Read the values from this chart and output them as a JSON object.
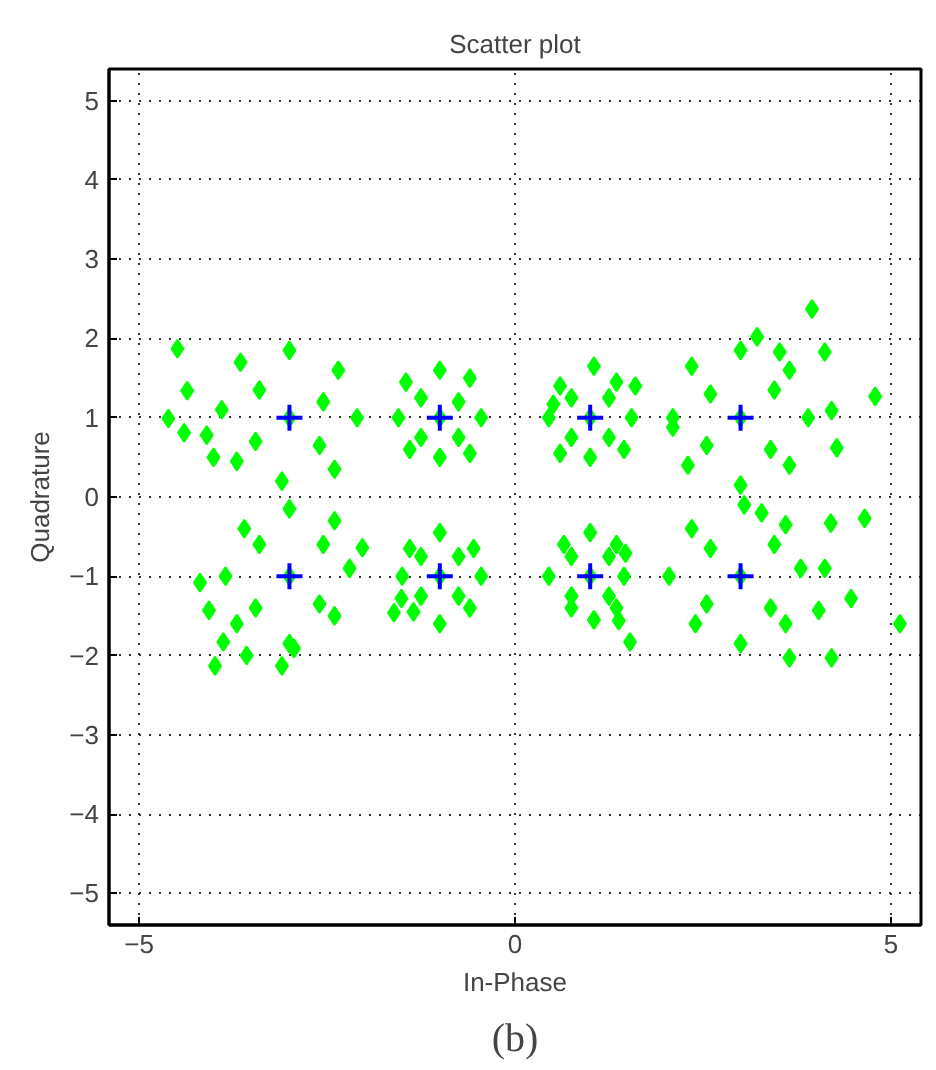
{
  "chart_data": {
    "type": "scatter",
    "title": "Scatter plot",
    "xlabel": "In-Phase",
    "ylabel": "Quadrature",
    "annotations": [
      "(b)"
    ],
    "xlim": [
      -5.4,
      5.4
    ],
    "ylim": [
      -5.4,
      5.4
    ],
    "xticks": [
      -5,
      0,
      5
    ],
    "yticks": [
      -5,
      -4,
      -3,
      -2,
      -1,
      0,
      1,
      2,
      3,
      4,
      5
    ],
    "grid": true,
    "line_style": "dotted",
    "series": [
      {
        "color": "#00ff00",
        "marker": "diamond",
        "x": [
          -3,
          -2.1,
          -2.35,
          -3.0,
          -3.65,
          -3.9,
          -3.7,
          -3.1,
          -2.4,
          -2.55,
          -3.4,
          -3.45,
          -2.6,
          -4.49,
          -4.61,
          -4.36,
          -4.4,
          -4.01,
          -4.1,
          3,
          3.9,
          3.65,
          3.0,
          2.35,
          2.1,
          2.3,
          3.0,
          3.65,
          3.45,
          2.6,
          2.55,
          3.4,
          3.95,
          3.22,
          4.79,
          4.21,
          4.28,
          2.1,
          4.12,
          3.52,
          -1,
          -0.45,
          -0.6,
          -1.0,
          -1.45,
          -1.55,
          -1.4,
          -1.0,
          -0.6,
          -0.75,
          -1.25,
          -1.25,
          -0.75,
          1,
          1.55,
          1.35,
          1.05,
          0.6,
          0.45,
          0.6,
          1.0,
          1.45,
          1.25,
          0.75,
          0.75,
          1.25,
          1.6,
          0.51,
          -3,
          -2.2,
          -2.4,
          -3.0,
          -3.6,
          -3.85,
          -3.7,
          -3.0,
          -2.4,
          -2.55,
          -3.4,
          -3.45,
          -2.6,
          -4.19,
          -4.07,
          -3.88,
          -3.99,
          -3.57,
          -3.1,
          -2.94,
          -2.03,
          3,
          3.8,
          3.6,
          3.05,
          2.35,
          2.05,
          2.4,
          3.0,
          3.6,
          3.45,
          2.6,
          2.55,
          3.4,
          4.65,
          4.2,
          4.47,
          5.12,
          3.65,
          4.21,
          4.12,
          4.04,
          3.28,
          -1,
          -0.45,
          -0.55,
          -1.0,
          -1.4,
          -1.5,
          -1.35,
          -1.0,
          -0.6,
          -0.75,
          -1.25,
          -1.25,
          -0.75,
          -1.61,
          -1.51,
          1,
          1.45,
          1.35,
          1.0,
          0.65,
          0.45,
          0.75,
          1.05,
          1.35,
          1.25,
          0.75,
          0.75,
          1.25,
          1.47,
          1.38,
          1.53
        ],
        "values": [
          1,
          1.0,
          1.6,
          1.85,
          1.7,
          1.1,
          0.45,
          0.2,
          0.35,
          1.2,
          1.35,
          0.7,
          0.65,
          1.87,
          0.99,
          1.34,
          0.81,
          0.5,
          0.78,
          1,
          1.0,
          1.6,
          1.85,
          1.65,
          1.0,
          0.4,
          0.15,
          0.4,
          1.35,
          1.3,
          0.65,
          0.6,
          2.37,
          2.02,
          1.27,
          1.09,
          0.62,
          0.88,
          1.83,
          1.83,
          1,
          1.0,
          1.5,
          1.6,
          1.45,
          1.0,
          0.6,
          0.5,
          0.55,
          1.2,
          1.25,
          0.75,
          0.75,
          1,
          1.0,
          1.45,
          1.65,
          1.4,
          1.0,
          0.55,
          0.5,
          0.6,
          1.25,
          1.25,
          0.75,
          0.75,
          1.4,
          1.17,
          -1,
          -0.9,
          -0.3,
          -0.15,
          -0.4,
          -1.0,
          -1.6,
          -1.85,
          -1.5,
          -0.6,
          -0.6,
          -1.4,
          -1.35,
          -1.08,
          -1.43,
          -1.83,
          -2.13,
          -2.0,
          -2.13,
          -1.91,
          -0.64,
          -1,
          -0.9,
          -0.35,
          -0.1,
          -0.4,
          -1.0,
          -1.6,
          -1.85,
          -1.6,
          -0.6,
          -0.65,
          -1.35,
          -1.4,
          -0.27,
          -0.33,
          -1.28,
          -1.6,
          -2.03,
          -2.03,
          -0.9,
          -1.43,
          -0.2,
          -1,
          -1.0,
          -0.65,
          -0.45,
          -0.65,
          -1.0,
          -1.45,
          -1.6,
          -1.4,
          -0.75,
          -0.75,
          -1.25,
          -1.25,
          -1.46,
          -1.28,
          -1,
          -1.0,
          -0.6,
          -0.45,
          -0.6,
          -1.0,
          -1.4,
          -1.55,
          -1.4,
          -0.75,
          -0.75,
          -1.25,
          -1.25,
          -0.71,
          -1.56,
          -1.83
        ]
      },
      {
        "color": "#0000ff",
        "marker": "cross",
        "x": [
          -3,
          -1,
          1,
          3,
          -3,
          -1,
          1,
          3
        ],
        "values": [
          1,
          1,
          1,
          1,
          -1,
          -1,
          -1,
          -1
        ]
      }
    ]
  }
}
